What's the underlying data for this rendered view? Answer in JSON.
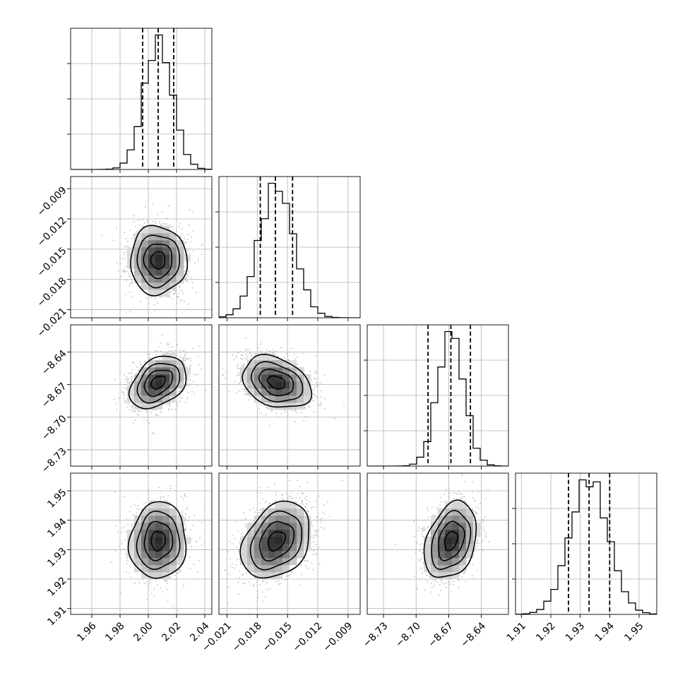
{
  "chart_data": {
    "type": "corner",
    "grid": true,
    "parameters": [
      {
        "range": [
          1.945,
          2.045
        ],
        "ticks": [
          1.96,
          1.98,
          2.0,
          2.02,
          2.04
        ],
        "tick_labels": [
          "1.96",
          "1.98",
          "2.00",
          "2.02",
          "2.04"
        ],
        "mean": 2.007,
        "std": 0.01,
        "quantiles": [
          1.996,
          2.007,
          2.018
        ]
      },
      {
        "range": [
          -0.0218,
          -0.0078
        ],
        "ticks": [
          -0.021,
          -0.018,
          -0.015,
          -0.012,
          -0.009
        ],
        "tick_labels": [
          "−0.021",
          "−0.018",
          "−0.015",
          "−0.012",
          "−0.009"
        ],
        "mean": -0.0161,
        "std": 0.0017,
        "quantiles": [
          -0.0177,
          -0.0162,
          -0.0145
        ]
      },
      {
        "range": [
          -8.745,
          -8.615
        ],
        "ticks": [
          -8.73,
          -8.7,
          -8.67,
          -8.64
        ],
        "tick_labels": [
          "−8.73",
          "−8.70",
          "−8.67",
          "−8.64"
        ],
        "mean": -8.668,
        "std": 0.012,
        "quantiles": [
          -8.689,
          -8.668,
          -8.65
        ]
      },
      {
        "range": [
          1.908,
          1.956
        ],
        "ticks": [
          1.91,
          1.92,
          1.93,
          1.94,
          1.95
        ],
        "tick_labels": [
          "1.91",
          "1.92",
          "1.93",
          "1.94",
          "1.95"
        ],
        "mean": 1.933,
        "std": 0.0065,
        "quantiles": [
          1.926,
          1.933,
          1.94
        ]
      }
    ],
    "correlations": [
      {
        "pair": [
          1,
          0
        ],
        "rho": 0.0
      },
      {
        "pair": [
          2,
          0
        ],
        "rho": 0.35
      },
      {
        "pair": [
          2,
          1
        ],
        "rho": -0.3
      },
      {
        "pair": [
          3,
          0
        ],
        "rho": 0.05
      },
      {
        "pair": [
          3,
          1
        ],
        "rho": 0.3
      },
      {
        "pair": [
          3,
          2
        ],
        "rho": 0.3
      }
    ],
    "histogram_bins": 20,
    "contour_levels_sigma": [
      0.5,
      1.0,
      1.5,
      2.0
    ],
    "scatter_color": "#bdbdbd"
  }
}
